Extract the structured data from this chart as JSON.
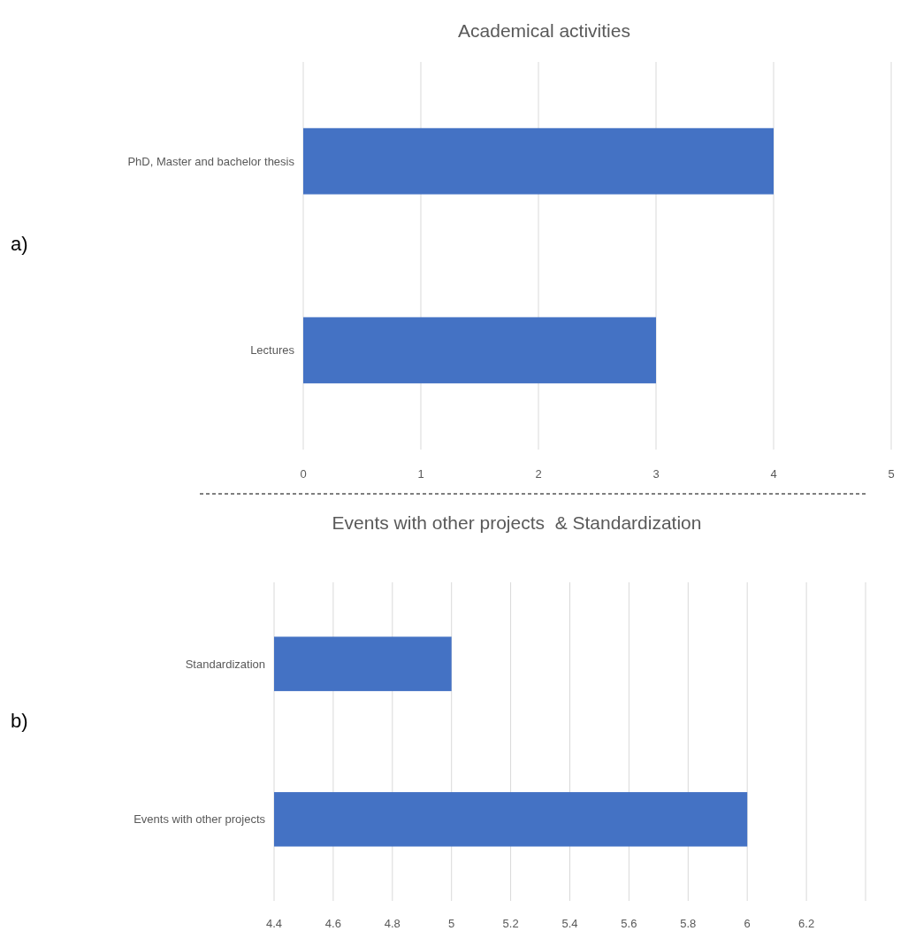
{
  "chart_data": [
    {
      "type": "bar",
      "orientation": "horizontal",
      "title": "Academical activities",
      "categories": [
        "PhD, Master and bachelor thesis",
        "Lectures"
      ],
      "values": [
        4,
        3
      ],
      "color": "#4472c4",
      "xlim": [
        0,
        5
      ],
      "xticks": [
        0,
        1,
        2,
        3,
        4,
        5
      ],
      "grid": "x",
      "annotations": [
        "a)"
      ]
    },
    {
      "type": "bar",
      "orientation": "horizontal",
      "title": "Events with other projects  & Standardization",
      "categories": [
        "Standardization",
        "Events with other projects"
      ],
      "values": [
        5,
        6
      ],
      "color": "#4472c4",
      "xlim": [
        4.4,
        6.4
      ],
      "xticks": [
        4.4,
        4.6,
        4.8,
        5,
        5.2,
        5.4,
        5.6,
        5.8,
        6,
        6.2,
        {
          "value": 6.4,
          "label": null
        }
      ],
      "grid": "x",
      "annotations": [
        "b)"
      ]
    }
  ]
}
